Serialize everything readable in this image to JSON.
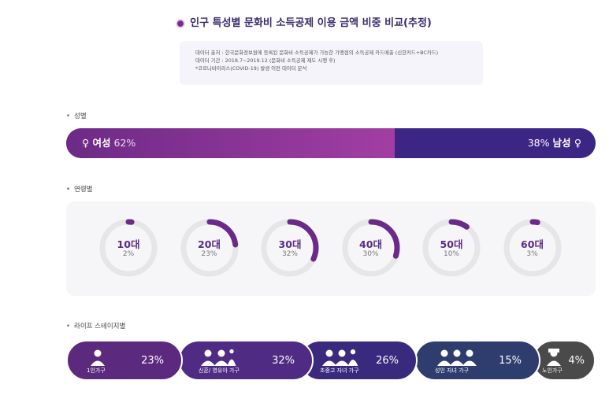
{
  "title": "인구 특성별 문화비 소득공제 이용 금액 비중 비교(추정)",
  "source_lines": [
    "데이터 출처 : 한국문화정보원에 등록된 문화비 소득공제가 가능한 가맹점의 소득공제 카드매출 (신한카드+BC카드)",
    "데이터 기간 : 2018.7~2019.12 (문화비 소득공제 제도 시행 후)",
    "*코로나바이러스(COVID-19) 발생 이전 데이터 분석"
  ],
  "sections": {
    "gender": "성별",
    "age": "연령별",
    "life": "라이프 스테이지별"
  },
  "colors": {
    "female": "#8e3498",
    "male": "#3b2684",
    "ring_track": "#e6e6e6",
    "ring_fill": "#6b2a8a"
  },
  "chart_data": [
    {
      "type": "bar",
      "categories": [
        "여성",
        "남성"
      ],
      "values": [
        62,
        38
      ],
      "labels": {
        "female": "♀ 여성",
        "female_pct": "62%",
        "male": "남성 ♀",
        "male_pct": "38%"
      }
    },
    {
      "type": "pie",
      "categories": [
        "10대",
        "20대",
        "30대",
        "40대",
        "50대",
        "60대"
      ],
      "values": [
        2,
        23,
        32,
        30,
        10,
        3
      ],
      "value_labels": [
        "2%",
        "23%",
        "32%",
        "30%",
        "10%",
        "3%"
      ]
    },
    {
      "type": "bar",
      "categories": [
        "1인가구",
        "신혼/ 영유아 가구",
        "초중고 자녀 가구",
        "성인 자녀 가구",
        "노인가구"
      ],
      "values": [
        23,
        32,
        26,
        15,
        4
      ],
      "value_labels": [
        "23%",
        "32%",
        "26%",
        "15%",
        "4%"
      ],
      "icons": [
        "person-icon",
        "couple-baby-icon",
        "family-kids-icon",
        "family-adult-icon",
        "elder-icon"
      ],
      "colors": [
        "#5b2a7e",
        "#4f2b84",
        "#3a2a7e",
        "#2e3d6e",
        "#4a4a4a"
      ]
    }
  ]
}
